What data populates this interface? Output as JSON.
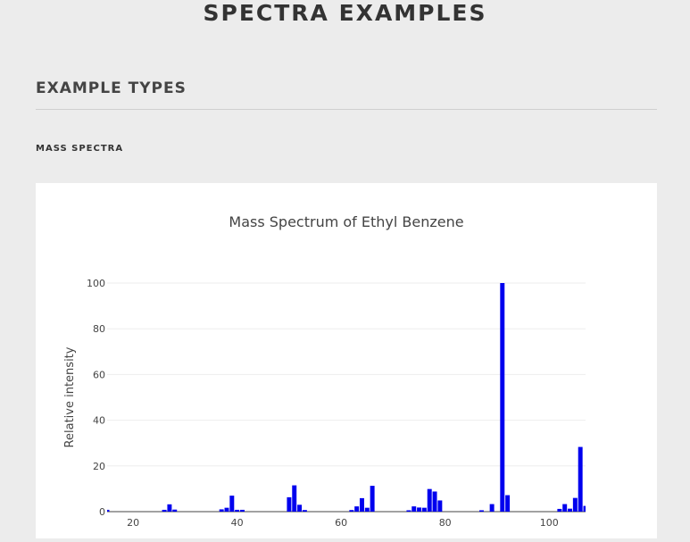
{
  "header": {
    "title": "SPECTRA EXAMPLES"
  },
  "section": {
    "title": "EXAMPLE TYPES"
  },
  "subsection": {
    "title": "MASS SPECTRA"
  },
  "chart_data": {
    "type": "bar",
    "title": "Mass Spectrum of Ethyl Benzene",
    "xlabel": "",
    "ylabel": "Relative intensity",
    "xlim": [
      15,
      107
    ],
    "ylim": [
      0,
      100
    ],
    "xticks": [
      20,
      40,
      60,
      80,
      100
    ],
    "yticks": [
      0,
      20,
      40,
      60,
      80,
      100
    ],
    "grid": true,
    "bar_color": "#0000ee",
    "x": [
      15,
      26,
      27,
      28,
      37,
      38,
      39,
      40,
      41,
      50,
      51,
      52,
      53,
      62,
      63,
      64,
      65,
      66,
      73,
      74,
      75,
      76,
      77,
      78,
      79,
      87,
      89,
      91,
      92,
      102,
      103,
      104,
      105,
      106,
      107
    ],
    "values": [
      0.8,
      0.8,
      3.2,
      0.9,
      1.0,
      1.7,
      7.0,
      0.8,
      0.8,
      6.3,
      11.5,
      3.0,
      0.7,
      0.7,
      2.3,
      5.9,
      1.7,
      11.3,
      0.6,
      2.3,
      1.8,
      1.7,
      9.9,
      8.8,
      4.9,
      0.6,
      3.3,
      100,
      7.2,
      1.2,
      3.3,
      1.3,
      6.0,
      28.3,
      2.5
    ]
  }
}
